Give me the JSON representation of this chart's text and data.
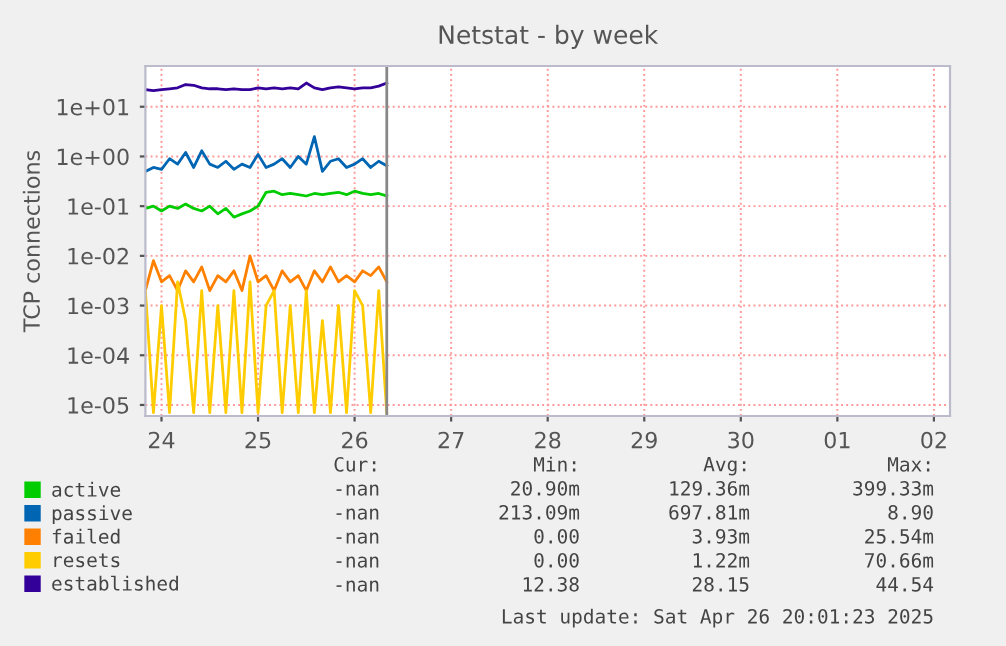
{
  "chart_data": {
    "type": "line",
    "title": "Netstat - by week",
    "ylabel": "TCP connections",
    "x": [
      "2025-04-24T08:00",
      "2025-04-24T10:00",
      "2025-04-24T12:00",
      "2025-04-24T14:00",
      "2025-04-24T16:00",
      "2025-04-24T18:00",
      "2025-04-24T20:00",
      "2025-04-24T22:00",
      "2025-04-25T00:00",
      "2025-04-25T02:00",
      "2025-04-25T04:00",
      "2025-04-25T06:00",
      "2025-04-25T08:00",
      "2025-04-25T10:00",
      "2025-04-25T12:00",
      "2025-04-25T14:00",
      "2025-04-25T16:00",
      "2025-04-25T18:00",
      "2025-04-25T20:00",
      "2025-04-25T22:00",
      "2025-04-26T00:00",
      "2025-04-26T02:00",
      "2025-04-26T04:00",
      "2025-04-26T06:00",
      "2025-04-26T08:00",
      "2025-04-26T10:00",
      "2025-04-26T12:00",
      "2025-04-26T14:00",
      "2025-04-26T16:00",
      "2025-04-26T18:00",
      "2025-04-26T20:00"
    ],
    "series": [
      {
        "name": "active",
        "color": "#00cc00",
        "values": [
          0.09,
          0.1,
          0.08,
          0.1,
          0.09,
          0.11,
          0.09,
          0.08,
          0.1,
          0.07,
          0.09,
          0.06,
          0.07,
          0.08,
          0.1,
          0.19,
          0.2,
          0.17,
          0.18,
          0.17,
          0.16,
          0.18,
          0.17,
          0.18,
          0.19,
          0.17,
          0.2,
          0.18,
          0.17,
          0.18,
          0.16
        ]
      },
      {
        "name": "passive",
        "color": "#0066b3",
        "values": [
          0.5,
          0.6,
          0.55,
          0.9,
          0.7,
          1.2,
          0.6,
          1.3,
          0.7,
          0.6,
          0.8,
          0.55,
          0.7,
          0.6,
          1.1,
          0.6,
          0.7,
          0.9,
          0.6,
          1.0,
          0.7,
          2.5,
          0.5,
          0.8,
          0.9,
          0.6,
          0.7,
          0.9,
          0.6,
          0.8,
          0.65
        ]
      },
      {
        "name": "failed",
        "color": "#ff8000",
        "values": [
          0.002,
          0.008,
          0.003,
          0.004,
          0.002,
          0.005,
          0.003,
          0.006,
          0.002,
          0.004,
          0.003,
          0.005,
          0.002,
          0.01,
          0.003,
          0.004,
          0.002,
          0.005,
          0.003,
          0.004,
          0.002,
          0.005,
          0.003,
          0.006,
          0.003,
          0.004,
          0.003,
          0.005,
          0.004,
          0.006,
          0.003
        ]
      },
      {
        "name": "resets",
        "color": "#ffcc00",
        "values": [
          0.002,
          7e-06,
          0.001,
          7e-06,
          0.003,
          0.0005,
          7e-06,
          0.002,
          7e-06,
          0.001,
          7e-06,
          0.002,
          7e-06,
          0.003,
          7e-06,
          0.001,
          0.002,
          7e-06,
          0.001,
          7e-06,
          0.002,
          7e-06,
          0.0005,
          7e-06,
          0.001,
          7e-06,
          0.002,
          0.001,
          7e-06,
          0.002,
          7e-06
        ]
      },
      {
        "name": "established",
        "color": "#330099",
        "values": [
          22,
          21,
          22,
          23,
          24,
          28,
          27,
          24,
          23,
          23,
          22,
          23,
          22,
          22,
          24,
          23,
          24,
          23,
          24,
          23,
          30,
          24,
          22,
          24,
          25,
          24,
          23,
          24,
          24,
          26,
          30
        ]
      }
    ],
    "log": "y",
    "xlim": [
      "2025-04-24T08:00",
      "2025-05-02T16:00"
    ],
    "ylim": [
      6e-06,
      66
    ],
    "xticks": [
      {
        "value": "2025-04-24T12:00",
        "label": "24"
      },
      {
        "value": "2025-04-25T12:00",
        "label": "25"
      },
      {
        "value": "2025-04-26T12:00",
        "label": "26"
      },
      {
        "value": "2025-04-27T12:00",
        "label": "27"
      },
      {
        "value": "2025-04-28T12:00",
        "label": "28"
      },
      {
        "value": "2025-04-29T12:00",
        "label": "29"
      },
      {
        "value": "2025-04-30T12:00",
        "label": "30"
      },
      {
        "value": "2025-05-01T12:00",
        "label": "01"
      },
      {
        "value": "2025-05-02T12:00",
        "label": "02"
      }
    ],
    "yticks": [
      {
        "value": 1e-05,
        "label": "1e-05"
      },
      {
        "value": 0.0001,
        "label": "1e-04"
      },
      {
        "value": 0.001,
        "label": "1e-03"
      },
      {
        "value": 0.01,
        "label": "1e-02"
      },
      {
        "value": 0.1,
        "label": "1e-01"
      },
      {
        "value": 1,
        "label": "1e+00"
      },
      {
        "value": 10,
        "label": "1e+01"
      }
    ],
    "grid": true,
    "legend": "bottom",
    "line_style": "solid",
    "ref_lines": [
      {
        "axis": "x",
        "value": "2025-04-26T20:00",
        "color": "#888888"
      }
    ],
    "annotations": [
      "Cur:",
      "Min:",
      "Avg:",
      "Max:",
      "-nan",
      "20.90m",
      "129.36m",
      "399.33m",
      "-nan",
      "213.09m",
      "697.81m",
      "8.90",
      "-nan",
      "0.00",
      "3.93m",
      "25.54m",
      "-nan",
      "0.00",
      "1.22m",
      "70.66m",
      "-nan",
      "12.38",
      "28.15",
      "44.54",
      "Last update: Sat Apr 26 20:01:23 2025"
    ]
  }
}
